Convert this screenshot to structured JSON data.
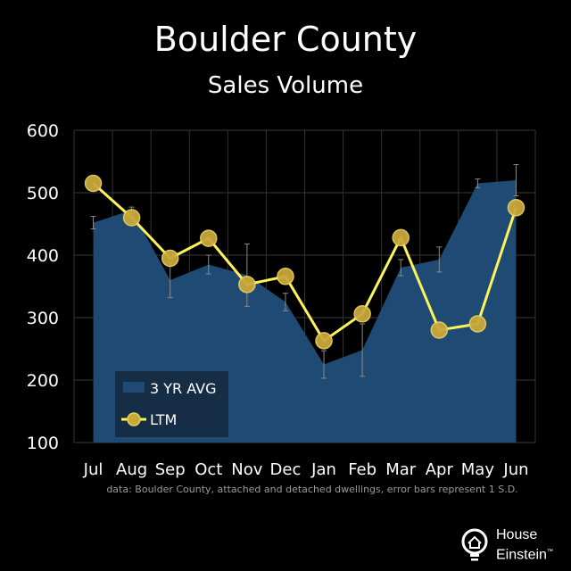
{
  "header": {
    "title": "Boulder County",
    "subtitle": "Sales Volume"
  },
  "chart_data": {
    "type": "line",
    "categories": [
      "Jul",
      "Aug",
      "Sep",
      "Oct",
      "Nov",
      "Dec",
      "Jan",
      "Feb",
      "Mar",
      "Apr",
      "May",
      "Jun"
    ],
    "ylim": [
      100,
      600
    ],
    "yticks": [
      100,
      200,
      300,
      400,
      500,
      600
    ],
    "grid": true,
    "legend_position": "bottom-left",
    "series": [
      {
        "name": "3 YR AVG",
        "kind": "area",
        "color": "#1f4a73",
        "values": [
          452,
          472,
          360,
          385,
          368,
          325,
          225,
          248,
          380,
          393,
          515,
          520
        ],
        "error": [
          10,
          5,
          28,
          15,
          50,
          14,
          22,
          42,
          13,
          20,
          7,
          25
        ]
      },
      {
        "name": "LTM",
        "kind": "line",
        "color": "#fdf35a",
        "marker_color": "#c9a83a",
        "values": [
          515,
          460,
          395,
          427,
          353,
          366,
          263,
          306,
          428,
          280,
          290,
          476
        ]
      }
    ]
  },
  "footer": {
    "note": "data: Boulder County, attached and detached dwellings, error bars represent 1 S.D.",
    "brand_line1": "House",
    "brand_line2": "Einstein",
    "brand_tm": "™"
  }
}
